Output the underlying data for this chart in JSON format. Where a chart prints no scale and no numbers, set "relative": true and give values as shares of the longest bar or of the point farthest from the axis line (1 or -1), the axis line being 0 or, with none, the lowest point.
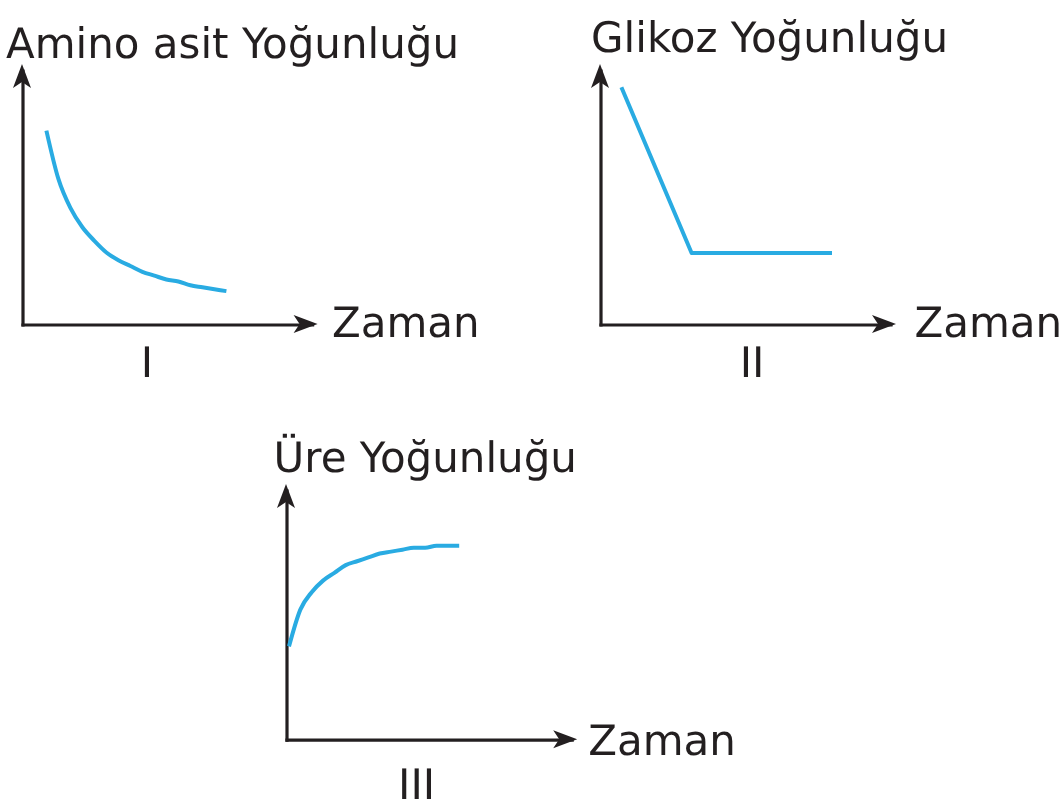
{
  "chart_data": [
    {
      "type": "line",
      "relative": true,
      "title": "I",
      "ylabel": "Amino asit Yoğunluğu",
      "xlabel": "Zaman",
      "categories": [
        null,
        null,
        null,
        null,
        null,
        null,
        null,
        null,
        null,
        null,
        null,
        null,
        null,
        null,
        null,
        null
      ],
      "values": [
        1,
        0.75,
        0.6,
        0.5,
        0.43,
        0.37,
        0.33,
        0.3,
        0.27,
        0.25,
        0.23,
        0.22,
        0.2,
        0.19,
        0.18,
        0.17
      ],
      "color": "#29abe2"
    },
    {
      "type": "line",
      "relative": true,
      "title": "II",
      "ylabel": "Glikoz Yoğunluğu",
      "xlabel": "Zaman",
      "categories": [
        null,
        null,
        null,
        null
      ],
      "values": [
        1,
        0.3,
        0.3,
        0.3
      ],
      "color": "#29abe2"
    },
    {
      "type": "line",
      "relative": true,
      "title": "III",
      "ylabel": "Üre Yoğunluğu",
      "xlabel": "Zaman",
      "categories": [
        null,
        null,
        null,
        null,
        null,
        null,
        null,
        null,
        null,
        null,
        null,
        null,
        null,
        null,
        null,
        null
      ],
      "values": [
        0.48,
        0.67,
        0.76,
        0.82,
        0.86,
        0.9,
        0.92,
        0.94,
        0.96,
        0.97,
        0.98,
        0.99,
        0.99,
        1,
        1,
        1
      ],
      "color": "#29abe2"
    }
  ]
}
